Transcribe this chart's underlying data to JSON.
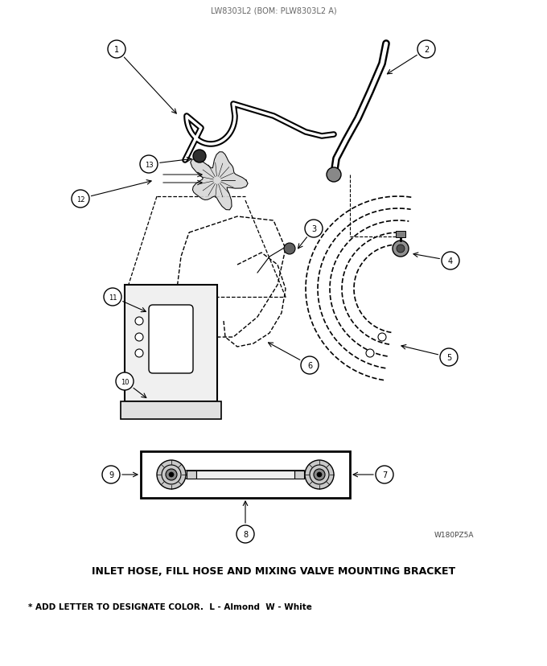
{
  "title_top": "LW8303L2 (BOM: PLW8303L2 A)",
  "title_bottom": "INLET HOSE, FILL HOSE AND MIXING VALVE MOUNTING BRACKET",
  "footnote": "* ADD LETTER TO DESIGNATE COLOR.  L - Almond  W - White",
  "watermark": "W180PZ5A",
  "bg_color": "#ffffff",
  "fg_color": "#000000"
}
